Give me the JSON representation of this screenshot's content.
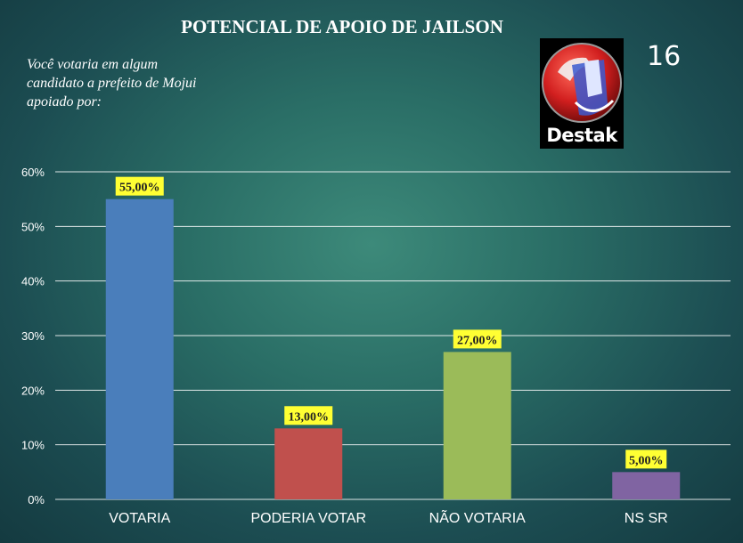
{
  "header": {
    "title": "POTENCIAL DE APOIO DE JAILSON",
    "question_lines": [
      "Você votaria em algum",
      "candidato a prefeito de Mojui",
      "apoiado por:"
    ],
    "page_number": "16",
    "logo_text": "Destak"
  },
  "chart_data": {
    "type": "bar",
    "title": "POTENCIAL DE APOIO DE JAILSON",
    "categories": [
      "VOTARIA",
      "PODERIA VOTAR",
      "NÃO VOTARIA",
      "NS SR"
    ],
    "values": [
      55,
      13,
      27,
      5
    ],
    "data_labels": [
      "55,00%",
      "13,00%",
      "27,00%",
      "5,00%"
    ],
    "colors": [
      "#4a7ebb",
      "#c0504d",
      "#9bbb59",
      "#8064a2"
    ],
    "ylim": [
      0,
      60
    ],
    "yticks": [
      "0%",
      "10%",
      "20%",
      "30%",
      "40%",
      "50%",
      "60%"
    ],
    "grid": true,
    "label_bg": "#ffff33"
  }
}
